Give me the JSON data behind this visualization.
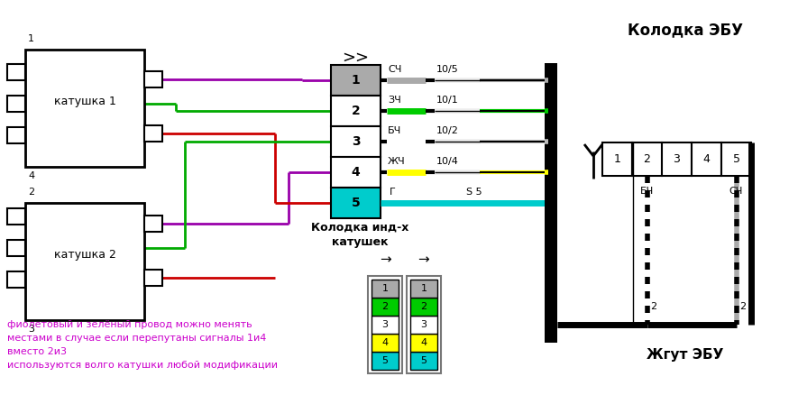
{
  "bg_color": "#ffffff",
  "coil1_label": "катушка 1",
  "coil2_label": "катушка 2",
  "ebu_label": "Колодка ЭБУ",
  "harness_label": "Жгут ЭБУ",
  "connector_label1": "Колодка инд-х",
  "connector_label2": "катушек",
  "note_text": "фиолетовый и зелёный провод можно менять\nместами в случае если перепутаны сигналы 1и4\nвместо 2и3\nиспользуются волго катушки любой модификации",
  "note_color": "#cc00cc",
  "pin_fc": [
    "#aaaaaa",
    "#ffffff",
    "#ffffff",
    "#ffffff",
    "#00cccc"
  ],
  "wire_label": [
    "СЧ",
    "ЗЧ",
    "БЧ",
    "ЖЧ",
    "Г"
  ],
  "wire_code": [
    "10/5",
    "10/1",
    "10/2",
    "10/4",
    "S 5"
  ],
  "wire_color": [
    "#aaaaaa",
    "#00cc00",
    "#ffffff",
    "#ffff00",
    "#00cccc"
  ],
  "sc_colors": [
    "#aaaaaa",
    "#00cc00",
    "#ffffff",
    "#ffff00",
    "#00cccc"
  ]
}
